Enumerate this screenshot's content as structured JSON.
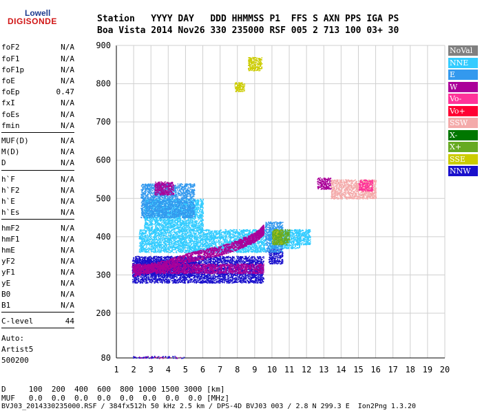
{
  "logo": {
    "top": "Lowell",
    "bottom": "DIGISONDE"
  },
  "header": {
    "row1": "Station   YYYY DAY   DDD HHMMSS P1  FFS S AXN PPS IGA PS",
    "row2": "Boa Vista 2014 Nov26 330 235000 RSF 005 2 713 100 03+ 30"
  },
  "params": [
    {
      "name": "foF2",
      "value": "N/A"
    },
    {
      "name": "foF1",
      "value": "N/A"
    },
    {
      "name": "foF1p",
      "value": "N/A"
    },
    {
      "name": "foE",
      "value": "N/A"
    },
    {
      "name": "foEp",
      "value": "0.47"
    },
    {
      "name": "fxI",
      "value": "N/A"
    },
    {
      "name": "foEs",
      "value": "N/A"
    },
    {
      "name": "fmin",
      "value": "N/A"
    },
    {
      "name": "MUF(D)",
      "value": "N/A"
    },
    {
      "name": "M(D)",
      "value": "N/A"
    },
    {
      "name": "D",
      "value": "N/A"
    },
    {
      "name": "h`F",
      "value": "N/A"
    },
    {
      "name": "h`F2",
      "value": "N/A"
    },
    {
      "name": "h`E",
      "value": "N/A"
    },
    {
      "name": "h`Es",
      "value": "N/A"
    },
    {
      "name": "hmF2",
      "value": "N/A"
    },
    {
      "name": "hmF1",
      "value": "N/A"
    },
    {
      "name": "hmE",
      "value": "N/A"
    },
    {
      "name": "yF2",
      "value": "N/A"
    },
    {
      "name": "yF1",
      "value": "N/A"
    },
    {
      "name": "yE",
      "value": "N/A"
    },
    {
      "name": "B0",
      "value": "N/A"
    },
    {
      "name": "B1",
      "value": "N/A"
    }
  ],
  "clevel": {
    "name": "C-level",
    "value": "44"
  },
  "auto": {
    "line1": "Auto:",
    "line2": "Artist5",
    "line3": "500200"
  },
  "legend": [
    {
      "label": "NoVal",
      "color": "#808080"
    },
    {
      "label": "NNE",
      "color": "#33ccff"
    },
    {
      "label": "E",
      "color": "#3399ee"
    },
    {
      "label": "W",
      "color": "#aa0099"
    },
    {
      "label": "Vo-",
      "color": "#ff3399"
    },
    {
      "label": "Vo+",
      "color": "#ff0033"
    },
    {
      "label": "SSW",
      "color": "#f4aaaa"
    },
    {
      "label": "X-",
      "color": "#007700"
    },
    {
      "label": "X+",
      "color": "#66aa22"
    },
    {
      "label": "SSE",
      "color": "#cccc00"
    },
    {
      "label": "NNW",
      "color": "#1a10cc"
    }
  ],
  "footer": {
    "row_d": "D     100  200  400  600  800 1000 1500 3000 [km]",
    "row_muf": "MUF   0.0  0.0  0.0  0.0  0.0  0.0  0.0  0.0 [MHz]",
    "row_file": "BVJ03_2014330235000.RSF / 384fx512h 50 kHz 2.5 km / DPS-4D BVJ03 003 / 2.8 N 299.3 E  Ion2Png 1.3.20"
  },
  "chart_data": {
    "type": "scatter",
    "title": "",
    "xlabel": "",
    "ylabel": "",
    "xlim": [
      1,
      20
    ],
    "ylim": [
      80,
      900
    ],
    "x_ticks": [
      1,
      2,
      3,
      4,
      5,
      6,
      7,
      8,
      9,
      10,
      11,
      12,
      13,
      14,
      15,
      16,
      17,
      18,
      19,
      20
    ],
    "y_ticks": [
      80,
      200,
      300,
      400,
      500,
      600,
      700,
      800,
      900
    ],
    "grid": true,
    "series": [
      {
        "name": "NNW",
        "color": "#1a10cc",
        "regions": [
          [
            1.9,
            9.5,
            280,
            350
          ],
          [
            9.8,
            10.6,
            330,
            370
          ],
          [
            2.0,
            5.5,
            300,
            340
          ]
        ]
      },
      {
        "name": "NNE",
        "color": "#33ccff",
        "regions": [
          [
            2.3,
            9.6,
            360,
            420
          ],
          [
            9.8,
            11.6,
            370,
            420
          ],
          [
            2.6,
            6.0,
            420,
            500
          ],
          [
            11.4,
            12.2,
            380,
            420
          ]
        ]
      },
      {
        "name": "E",
        "color": "#3399ee",
        "regions": [
          [
            2.4,
            5.5,
            450,
            540
          ],
          [
            9.6,
            10.6,
            360,
            440
          ]
        ]
      },
      {
        "name": "W",
        "color": "#aa0099",
        "regions": [
          [
            1.9,
            9.5,
            305,
            330
          ],
          [
            3.2,
            4.3,
            510,
            545
          ],
          [
            12.6,
            13.4,
            525,
            555
          ]
        ]
      },
      {
        "name": "SSW",
        "color": "#f4aaaa",
        "regions": [
          [
            13.4,
            16.0,
            500,
            550
          ]
        ]
      },
      {
        "name": "SSE",
        "color": "#cccc00",
        "regions": [
          [
            8.6,
            9.4,
            835,
            870
          ],
          [
            7.8,
            8.4,
            780,
            805
          ],
          [
            10.0,
            10.6,
            380,
            420
          ]
        ]
      },
      {
        "name": "X+",
        "color": "#66aa22",
        "regions": [
          [
            10.0,
            11.0,
            380,
            420
          ]
        ]
      },
      {
        "name": "Vo-",
        "color": "#ff3399",
        "regions": [
          [
            15.0,
            15.8,
            520,
            550
          ]
        ]
      }
    ],
    "traces": [
      {
        "name": "W",
        "color": "#aa0099",
        "x": [
          2.0,
          3.0,
          4.0,
          5.0,
          6.0,
          7.0,
          8.0,
          8.5,
          9.0,
          9.3,
          9.5
        ],
        "y": [
          310,
          320,
          330,
          345,
          355,
          365,
          380,
          390,
          400,
          410,
          420
        ]
      }
    ]
  }
}
